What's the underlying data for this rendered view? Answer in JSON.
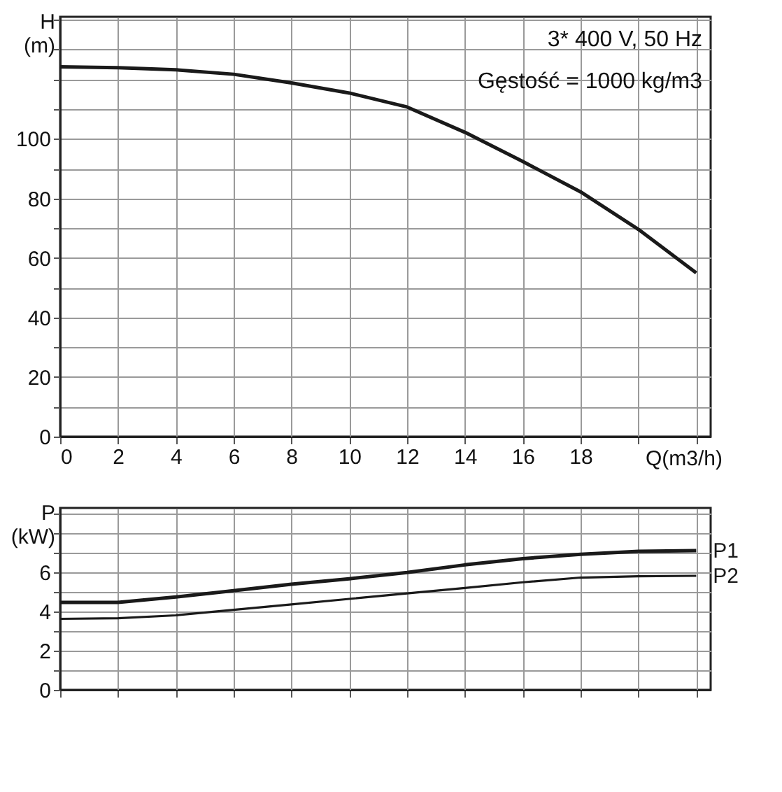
{
  "chart_data": [
    {
      "type": "line",
      "xlabel": "Q(m3/h)",
      "ylabel": "H (m)",
      "annotations": [
        "3* 400 V, 50 Hz",
        "Gęstość = 1000 kg/m3"
      ],
      "x": [
        0,
        2,
        4,
        6,
        8,
        10,
        12,
        14,
        16,
        18,
        20,
        22
      ],
      "series": [
        {
          "color": "#1a1a1a",
          "values": [
            124.2,
            123.9,
            123.2,
            121.7,
            118.8,
            115.4,
            110.7,
            102.2,
            92.4,
            82.2,
            69.6,
            55
          ]
        }
      ],
      "xlim": [
        0,
        22.5
      ],
      "xticks": [
        0,
        2,
        4,
        6,
        8,
        10,
        12,
        14,
        16,
        18,
        {
          "value": 20,
          "label": null
        },
        {
          "value": 22,
          "label": null
        }
      ],
      "ylim": [
        0,
        141
      ],
      "yticks": [
        0,
        {
          "value": 10,
          "label": null
        },
        20,
        {
          "value": 30,
          "label": null
        },
        40,
        {
          "value": 50,
          "label": null
        },
        60,
        {
          "value": 70,
          "label": null
        },
        80,
        {
          "value": 90,
          "label": null
        },
        100,
        {
          "value": 110,
          "label": null
        },
        {
          "value": 120,
          "label": null
        },
        {
          "value": 130,
          "label": null
        },
        {
          "value": 140,
          "label": null
        }
      ],
      "grid": true,
      "marker": "none",
      "line_style": "solid"
    },
    {
      "type": "line",
      "ylabel": "P (kW)",
      "x": [
        0,
        2,
        4,
        6,
        8,
        10,
        12,
        14,
        16,
        18,
        20,
        22
      ],
      "series": [
        {
          "name": "P1",
          "color": "#1a1a1a",
          "values": [
            4.47,
            4.47,
            4.75,
            5.07,
            5.4,
            5.68,
            6.0,
            6.39,
            6.71,
            6.93,
            7.08,
            7.12
          ]
        },
        {
          "name": "P2",
          "color": "#1a1a1a",
          "values": [
            3.63,
            3.66,
            3.81,
            4.09,
            4.37,
            4.65,
            4.93,
            5.21,
            5.5,
            5.74,
            5.81,
            5.83
          ]
        }
      ],
      "xlim": [
        0,
        22.5
      ],
      "xticks": [
        0,
        2,
        4,
        6,
        8,
        10,
        12,
        14,
        16,
        18,
        20,
        22
      ],
      "ylim": [
        0,
        9.3
      ],
      "yticks": [
        0,
        {
          "value": 1,
          "label": null
        },
        2,
        {
          "value": 3,
          "label": null
        },
        4,
        {
          "value": 5,
          "label": null
        },
        6,
        {
          "value": 7,
          "label": null
        },
        {
          "value": 8,
          "label": null
        },
        {
          "value": 9,
          "label": null
        }
      ],
      "tick_labels": "y",
      "grid": true,
      "marker": "none",
      "line_style": "solid"
    }
  ]
}
